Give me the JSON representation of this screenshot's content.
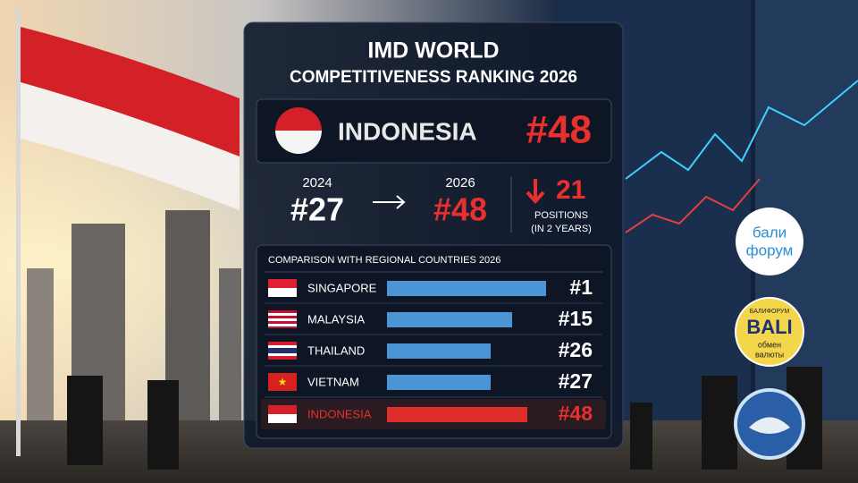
{
  "header": {
    "title_line1": "IMD WORLD",
    "title_line2": "COMPETITIVENESS RANKING 2026"
  },
  "highlight": {
    "country": "INDONESIA",
    "rank": "#48"
  },
  "change": {
    "from_year": "2024",
    "from_rank": "#27",
    "to_year": "2026",
    "to_rank": "#48",
    "drop": "21",
    "caption_line1": "POSITIONS",
    "caption_line2": "(IN 2 YEARS)"
  },
  "comparison": {
    "heading": "COMPARISON WITH REGIONAL COUNTRIES 2026",
    "rows": [
      [
        "SINGAPORE",
        "#1"
      ],
      [
        "MALAYSIA",
        "#15"
      ],
      [
        "THAILAND",
        "#26"
      ],
      [
        "VIETNAM",
        "#27"
      ],
      [
        "INDONESIA",
        "#48"
      ]
    ]
  },
  "logos": {
    "logo1_line1": "бали",
    "logo1_line2": "форум",
    "logo2_top": "БАЛИФОРУМ",
    "logo2_main": "BALI",
    "logo2_line1": "обмен",
    "logo2_line2": "валюты"
  }
}
